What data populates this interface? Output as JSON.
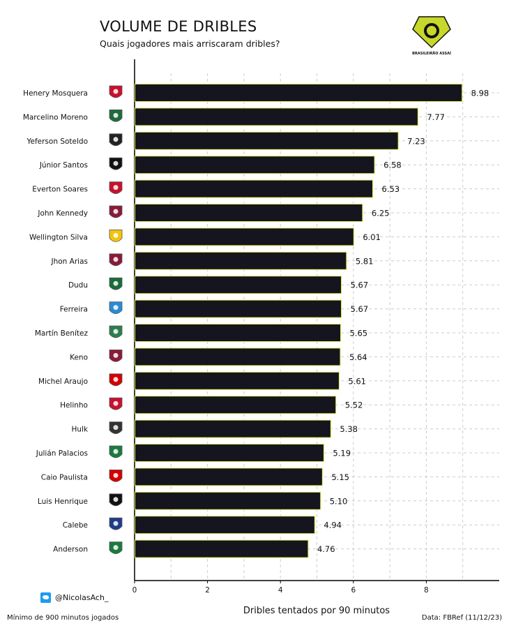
{
  "header": {
    "title": "VOLUME DE DRIBLES",
    "subtitle": "Quais jogadores mais arriscaram dribles?",
    "logo_text": "BRASILEIRÃO ASSAÍ"
  },
  "footer": {
    "twitter_handle": "@NicolasAch_",
    "note": "Mínimo de 900 minutos jogados",
    "source": "Data: FBRef (11/12/23)"
  },
  "colors": {
    "bar": "#15151f",
    "bar_edge": "#e6ec4a",
    "grid": "#cccccc",
    "axis": "#000000"
  },
  "chart_data": {
    "type": "bar",
    "orientation": "horizontal",
    "title": "VOLUME DE DRIBLES",
    "subtitle": "Quais jogadores mais arriscaram dribles?",
    "xlabel": "Dribles tentados por 90 minutos",
    "ylabel": "",
    "xlim": [
      0,
      10
    ],
    "xticks": [
      0,
      2,
      4,
      6,
      8
    ],
    "grid": true,
    "categories": [
      "Henery Mosquera",
      "Marcelino Moreno",
      "Yeferson Soteldo",
      "Júnior Santos",
      "Everton Soares",
      "John Kennedy",
      "Wellington Silva",
      "Jhon Arias",
      "Dudu",
      "Ferreira",
      "Martín Benítez",
      "Keno",
      "Michel Araujo",
      "Helinho",
      "Hulk",
      "Julián Palacios",
      "Caio Paulista",
      "Luis Henrique",
      "Calebe",
      "Anderson"
    ],
    "values": [
      8.98,
      7.77,
      7.23,
      6.58,
      6.53,
      6.25,
      6.01,
      5.81,
      5.67,
      5.67,
      5.65,
      5.64,
      5.61,
      5.52,
      5.38,
      5.19,
      5.15,
      5.1,
      4.94,
      4.76
    ],
    "value_labels": [
      "8.98",
      "7.77",
      "7.23",
      "6.58",
      "6.53",
      "6.25",
      "6.01",
      "5.81",
      "5.67",
      "5.67",
      "5.65",
      "5.64",
      "5.61",
      "5.52",
      "5.38",
      "5.19",
      "5.15",
      "5.10",
      "4.94",
      "4.76"
    ],
    "badges": [
      "redbull-bragantino-badge",
      "coritiba-badge",
      "santos-badge",
      "botafogo-badge",
      "flamengo-badge",
      "fluminense-badge",
      "cuiaba-badge",
      "fluminense-badge",
      "palmeiras-badge",
      "gremio-badge",
      "america-mg-badge",
      "fluminense-badge",
      "sao-paulo-badge",
      "redbull-bragantino-badge",
      "atletico-mg-badge",
      "goias-badge",
      "sao-paulo-badge",
      "botafogo-badge",
      "fortaleza-badge",
      "goias-badge"
    ],
    "badge_colors": [
      "#c8102e",
      "#1f6b3b",
      "#222222",
      "#111111",
      "#c8102e",
      "#8b1a3a",
      "#f1c40f",
      "#8b1a3a",
      "#1a6b3a",
      "#2a8bd4",
      "#2e7d4f",
      "#8b1a3a",
      "#d40000",
      "#c8102e",
      "#333333",
      "#1b7a3e",
      "#d40000",
      "#111111",
      "#1f3c88",
      "#1b7a3e"
    ]
  }
}
